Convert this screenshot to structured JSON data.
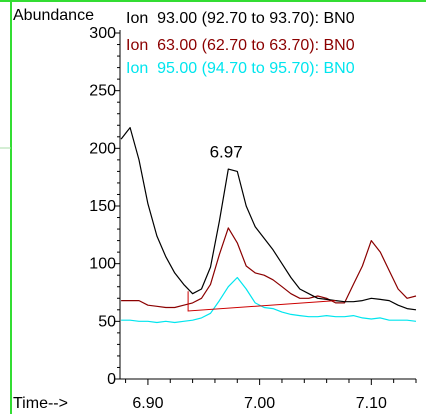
{
  "chart_data": {
    "type": "line",
    "ylabel": "Abundance",
    "xlabel": "Time-->",
    "xlim": [
      6.875,
      7.14
    ],
    "ylim": [
      0,
      300
    ],
    "x_ticks": [
      6.9,
      7.0,
      7.1
    ],
    "x_tick_labels": [
      "6.90",
      "7.00",
      "7.10"
    ],
    "y_ticks": [
      0,
      50,
      100,
      150,
      200,
      250,
      300
    ],
    "y_tick_labels": [
      "0",
      "50",
      "100",
      "150",
      "200",
      "250",
      "300"
    ],
    "legend_position": "top",
    "annotations": [
      {
        "text": "6.97",
        "x": 6.97,
        "y": 192
      }
    ],
    "series": [
      {
        "name": "Ion  93.00 (92.70 to 93.70): BN0",
        "color": "#000000",
        "x": [
          6.876,
          6.884,
          6.892,
          6.9,
          6.908,
          6.916,
          6.924,
          6.932,
          6.94,
          6.948,
          6.956,
          6.964,
          6.972,
          6.98,
          6.988,
          6.996,
          7.004,
          7.012,
          7.02,
          7.028,
          7.036,
          7.044,
          7.052,
          7.06,
          7.068,
          7.076,
          7.084,
          7.092,
          7.1,
          7.108,
          7.116,
          7.124,
          7.132,
          7.14
        ],
        "values": [
          208,
          218,
          190,
          152,
          124,
          106,
          92,
          82,
          74,
          78,
          97,
          137,
          182,
          180,
          150,
          132,
          122,
          112,
          100,
          88,
          78,
          74,
          70,
          69,
          68,
          67,
          67,
          68,
          70,
          69,
          68,
          64,
          61,
          60
        ]
      },
      {
        "name": "Ion  63.00 (62.70 to 63.70): BN0",
        "color": "#8b0000",
        "x": [
          6.876,
          6.884,
          6.892,
          6.9,
          6.908,
          6.916,
          6.924,
          6.932,
          6.94,
          6.948,
          6.956,
          6.964,
          6.972,
          6.98,
          6.988,
          6.996,
          7.004,
          7.012,
          7.02,
          7.028,
          7.036,
          7.044,
          7.052,
          7.06,
          7.068,
          7.076,
          7.084,
          7.092,
          7.1,
          7.108,
          7.116,
          7.124,
          7.132,
          7.14
        ],
        "values": [
          68,
          68,
          68,
          64,
          63,
          62,
          62,
          64,
          66,
          70,
          82,
          108,
          131,
          118,
          98,
          92,
          90,
          86,
          80,
          74,
          70,
          70,
          72,
          70,
          66,
          66,
          82,
          98,
          120,
          110,
          94,
          78,
          70,
          72
        ]
      },
      {
        "name": "Ion  95.00 (94.70 to 95.70): BN0",
        "color": "#00e5ee",
        "x": [
          6.876,
          6.884,
          6.892,
          6.9,
          6.908,
          6.916,
          6.924,
          6.932,
          6.94,
          6.948,
          6.956,
          6.964,
          6.972,
          6.98,
          6.988,
          6.996,
          7.004,
          7.012,
          7.02,
          7.028,
          7.036,
          7.044,
          7.052,
          7.06,
          7.068,
          7.076,
          7.084,
          7.092,
          7.1,
          7.108,
          7.116,
          7.124,
          7.132,
          7.14
        ],
        "values": [
          51,
          51,
          50,
          50,
          49,
          50,
          49,
          50,
          51,
          53,
          57,
          68,
          80,
          88,
          78,
          66,
          62,
          61,
          58,
          56,
          55,
          54,
          54,
          55,
          54,
          54,
          55,
          53,
          52,
          53,
          51,
          51,
          51,
          50
        ]
      }
    ],
    "baseline": {
      "color": "#cc0000",
      "x": [
        6.936,
        6.936,
        7.068
      ],
      "values": [
        76,
        59,
        68
      ]
    }
  }
}
